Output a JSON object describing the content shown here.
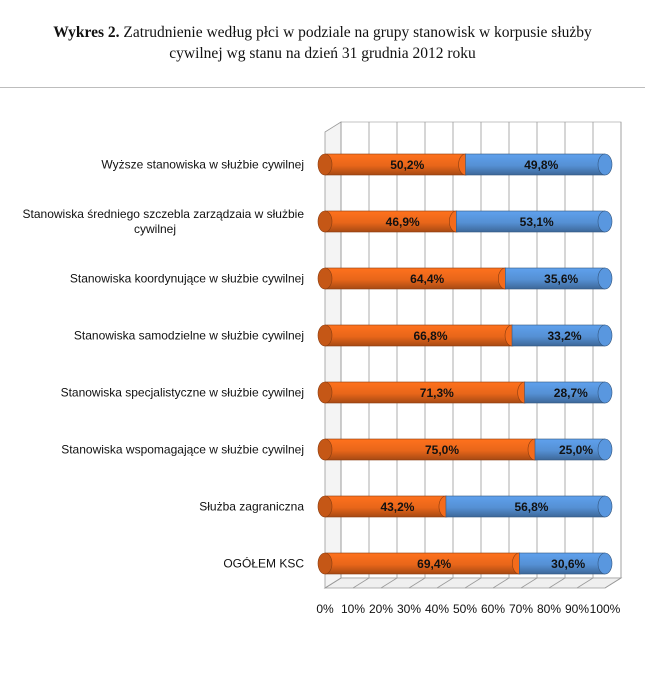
{
  "caption": {
    "prefix": "Wykres 2.",
    "line1": "Zatrudnienie według płci w podziale na grupy stanowisk w korpusie służby",
    "line2": "cywilnej wg stanu na dzień 31 grudnia 2012 roku"
  },
  "colors": {
    "series1": "#e8661a",
    "series2": "#5590d4",
    "grid": "#9a9a9a"
  },
  "chart_data": {
    "type": "bar",
    "orientation": "horizontal",
    "stacked": "percent",
    "categories": [
      [
        "Wyższe stanowiska w służbie cywilnej"
      ],
      [
        "Stanowiska średniego szczebla zarządzaia w służbie",
        "cywilnej"
      ],
      [
        "Stanowiska koordynujące w służbie cywilnej"
      ],
      [
        "Stanowiska samodzielne w służbie cywilnej"
      ],
      [
        "Stanowiska specjalistyczne w służbie cywilnej"
      ],
      [
        "Stanowiska wspomagające w służbie cywilnej"
      ],
      [
        "Służba zagraniczna"
      ],
      [
        "OGÓŁEM KSC"
      ]
    ],
    "series": [
      {
        "values": [
          50.2,
          46.9,
          64.4,
          66.8,
          71.3,
          75.0,
          43.2,
          69.4
        ],
        "labels": [
          "50,2%",
          "46,9%",
          "64,4%",
          "66,8%",
          "71,3%",
          "75,0%",
          "43,2%",
          "69,4%"
        ]
      },
      {
        "values": [
          49.8,
          53.1,
          35.6,
          33.2,
          28.7,
          25.0,
          56.8,
          30.6
        ],
        "labels": [
          "49,8%",
          "53,1%",
          "35,6%",
          "33,2%",
          "28,7%",
          "25,0%",
          "56,8%",
          "30,6%"
        ]
      }
    ],
    "xlim": [
      0,
      100
    ],
    "xticks": [
      "0%",
      "10%",
      "20%",
      "30%",
      "40%",
      "50%",
      "60%",
      "70%",
      "80%",
      "90%",
      "100%"
    ],
    "grid": true,
    "legend": "none"
  }
}
